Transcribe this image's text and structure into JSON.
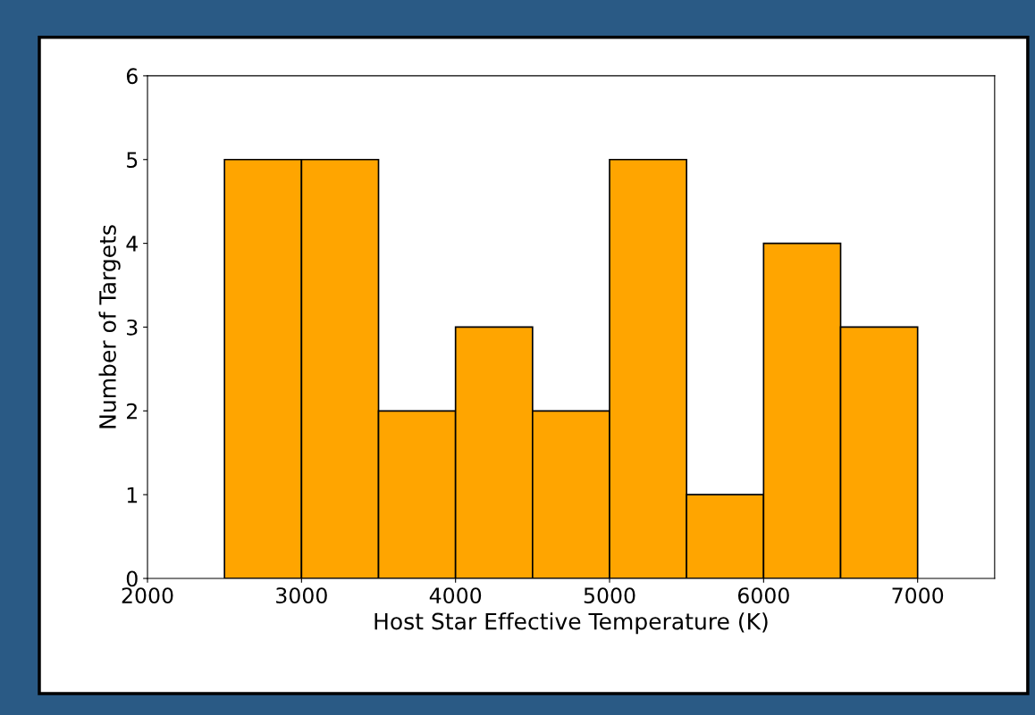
{
  "chart_data": {
    "type": "histogram",
    "xlabel": "Host Star Effective Temperature (K)",
    "ylabel": "Number of Targets",
    "bins": [
      2500,
      3000,
      3500,
      4000,
      4500,
      5000,
      5500,
      6000,
      6500,
      7000
    ],
    "values": [
      5,
      5,
      2,
      3,
      2,
      5,
      1,
      4,
      3
    ],
    "color": "#ffa500",
    "xlim": [
      2000,
      7500
    ],
    "xticks": [
      2000,
      3000,
      4000,
      5000,
      6000,
      7000
    ],
    "ylim": [
      0,
      6
    ],
    "yticks": [
      0,
      1,
      2,
      3,
      4,
      5,
      6
    ],
    "grid": false
  }
}
